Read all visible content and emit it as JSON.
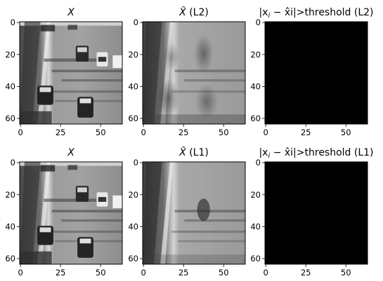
{
  "figure": {
    "panels": [
      {
        "id": "x-top",
        "title_prefix": "",
        "title_math": "X",
        "title_suffix": "",
        "image": "traffic-original",
        "x_ticks": [
          "0",
          "25",
          "50"
        ],
        "y_ticks": [
          "0",
          "20",
          "40",
          "60"
        ]
      },
      {
        "id": "xhat-l2",
        "title_prefix": "",
        "title_math": "X̂",
        "title_suffix": " (L2)",
        "image": "traffic-background-l2",
        "x_ticks": [
          "0",
          "25",
          "50"
        ],
        "y_ticks": [
          "0",
          "20",
          "40",
          "60"
        ]
      },
      {
        "id": "diff-l2",
        "title_prefix": "|x",
        "title_math": "i",
        "title_suffix": " − x̂i|>threshold (L2)",
        "image": "black-mask",
        "x_ticks": [
          "0",
          "25",
          "50"
        ],
        "y_ticks": [
          "0",
          "20",
          "40",
          "60"
        ]
      },
      {
        "id": "x-bottom",
        "title_prefix": "",
        "title_math": "X",
        "title_suffix": "",
        "image": "traffic-original",
        "x_ticks": [
          "0",
          "25",
          "50"
        ],
        "y_ticks": [
          "0",
          "20",
          "40",
          "60"
        ]
      },
      {
        "id": "xhat-l1",
        "title_prefix": "",
        "title_math": "X̂",
        "title_suffix": " (L1)",
        "image": "traffic-background-l1",
        "x_ticks": [
          "0",
          "25",
          "50"
        ],
        "y_ticks": [
          "0",
          "20",
          "40",
          "60"
        ]
      },
      {
        "id": "diff-l1",
        "title_prefix": "|x",
        "title_math": "i",
        "title_suffix": " − x̂i|>threshold (L1)",
        "image": "black-mask",
        "x_ticks": [
          "0",
          "25",
          "50"
        ],
        "y_ticks": [
          "0",
          "20",
          "40",
          "60"
        ]
      }
    ]
  }
}
